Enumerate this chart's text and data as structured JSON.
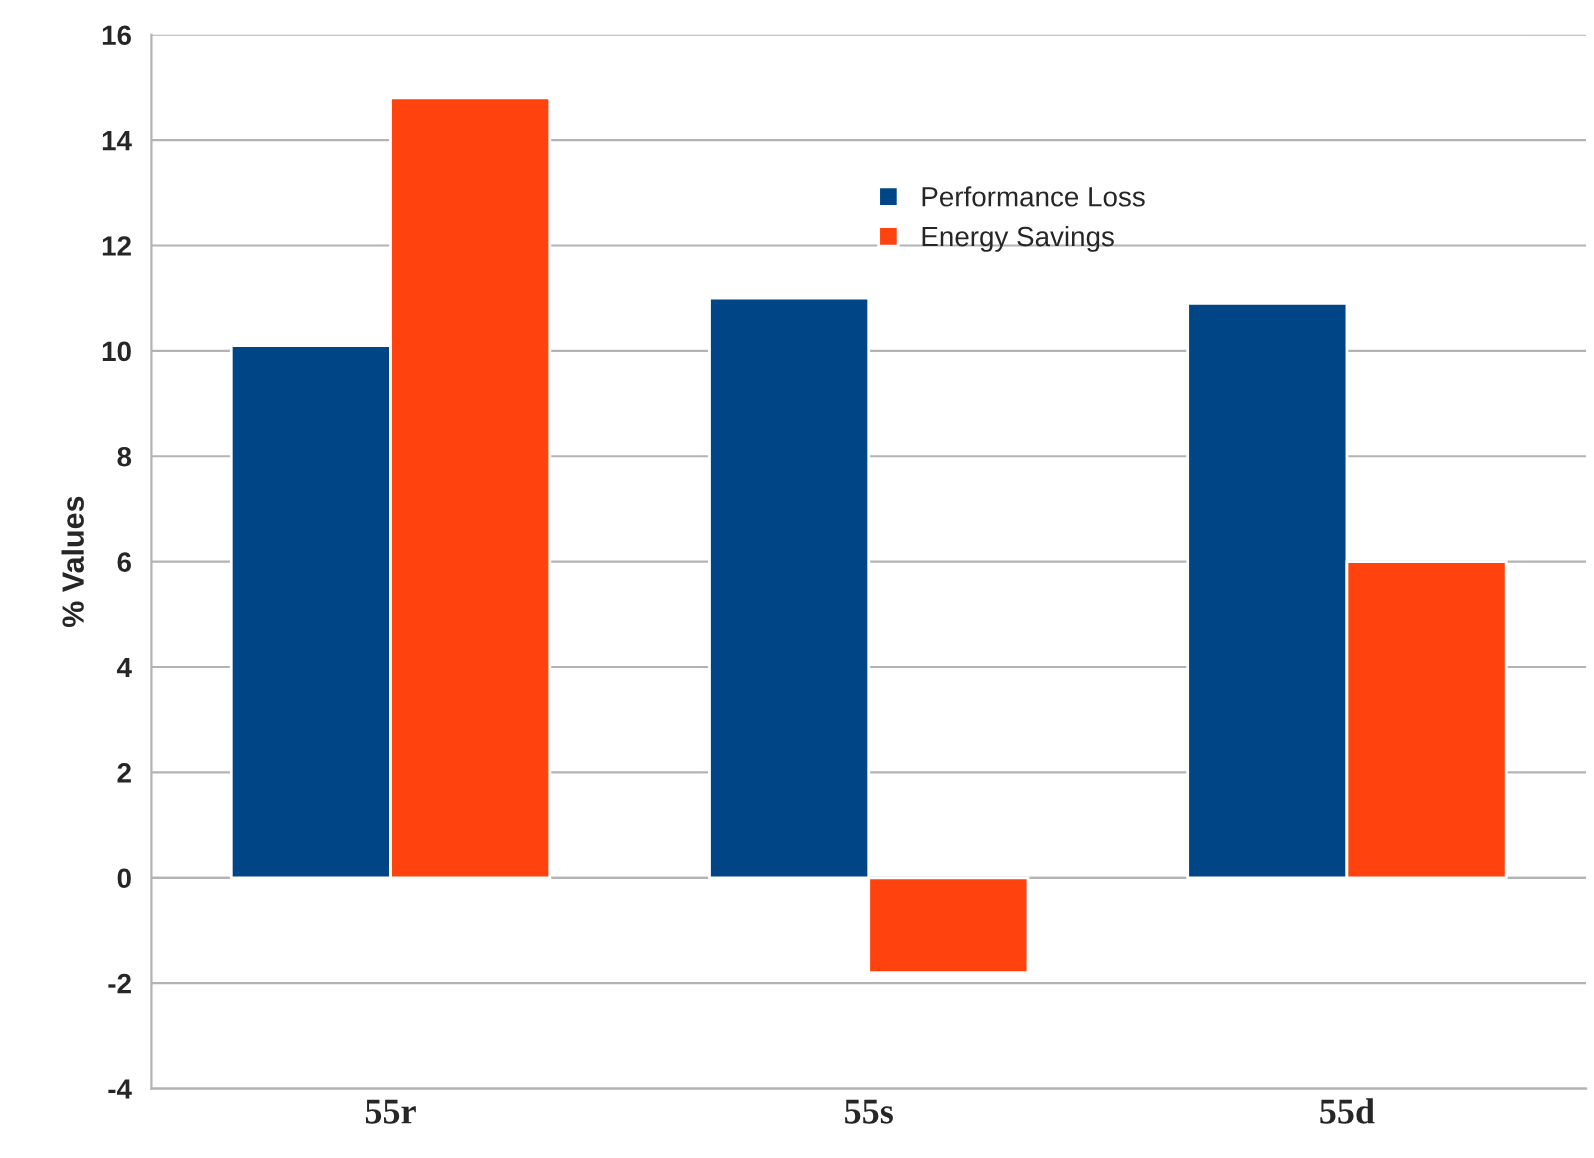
{
  "chart_data": {
    "type": "bar",
    "ylabel": "% Values",
    "categories": [
      "55r",
      "55s",
      "55d"
    ],
    "series": [
      {
        "name": "Performance Loss",
        "color": "#004586",
        "values": [
          10.1,
          11.0,
          10.9
        ]
      },
      {
        "name": "Energy Savings",
        "color": "#ff420e",
        "values": [
          14.8,
          -1.8,
          6.0
        ]
      }
    ],
    "ylim": [
      -4,
      16
    ],
    "yticks": [
      -4,
      -2,
      0,
      2,
      4,
      6,
      8,
      10,
      12,
      14,
      16
    ],
    "grid": "y",
    "legend": "top"
  }
}
